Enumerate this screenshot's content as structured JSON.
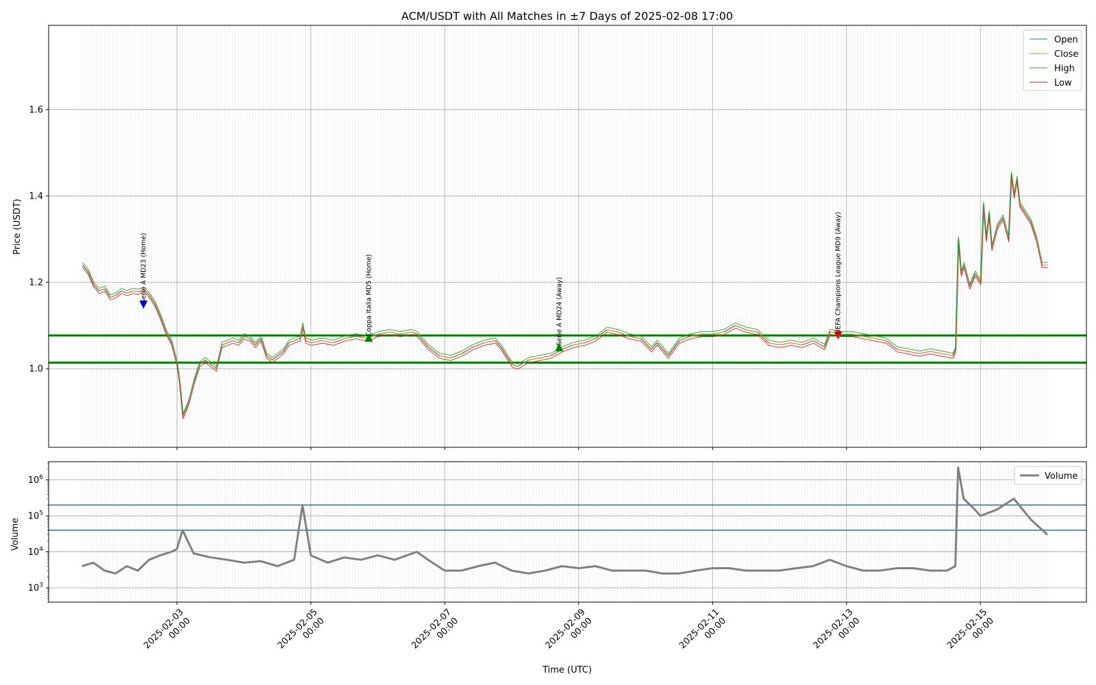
{
  "chart_data": [
    {
      "type": "line",
      "title": "ACM/USDT with All Matches in ±7 Days of 2025-02-08 17:00",
      "xlabel": "Time (UTC)",
      "ylabel": "Price (USDT)",
      "xlim": [
        "2025-02-01 02:00",
        "2025-02-16 14:00"
      ],
      "ylim": [
        0.818,
        1.795
      ],
      "y_ticks": [
        1.0,
        1.2,
        1.4,
        1.6
      ],
      "y_tick_labels": [
        "1.0",
        "1.2",
        "1.4",
        "1.6"
      ],
      "grid": true,
      "legend_position": "top-right",
      "series": [
        {
          "name": "Open",
          "color": "#1f77b4"
        },
        {
          "name": "Close",
          "color": "#ff7f0e"
        },
        {
          "name": "High",
          "color": "#2ca02c"
        },
        {
          "name": "Low",
          "color": "#d62728"
        }
      ],
      "close_points": [
        [
          "2025-02-01 14:00",
          1.24
        ],
        [
          "2025-02-01 16:00",
          1.225
        ],
        [
          "2025-02-01 18:00",
          1.195
        ],
        [
          "2025-02-01 20:00",
          1.18
        ],
        [
          "2025-02-01 22:00",
          1.185
        ],
        [
          "2025-02-02 00:00",
          1.165
        ],
        [
          "2025-02-02 02:00",
          1.17
        ],
        [
          "2025-02-02 04:00",
          1.18
        ],
        [
          "2025-02-02 06:00",
          1.175
        ],
        [
          "2025-02-02 08:00",
          1.18
        ],
        [
          "2025-02-02 10:00",
          1.178
        ],
        [
          "2025-02-02 12:00",
          1.183
        ],
        [
          "2025-02-02 14:00",
          1.17
        ],
        [
          "2025-02-02 16:00",
          1.15
        ],
        [
          "2025-02-02 18:00",
          1.12
        ],
        [
          "2025-02-02 20:00",
          1.085
        ],
        [
          "2025-02-02 22:00",
          1.06
        ],
        [
          "2025-02-03 00:00",
          1.01
        ],
        [
          "2025-02-03 01:00",
          0.96
        ],
        [
          "2025-02-03 02:00",
          0.89
        ],
        [
          "2025-02-03 04:00",
          0.92
        ],
        [
          "2025-02-03 06:00",
          0.97
        ],
        [
          "2025-02-03 08:00",
          1.01
        ],
        [
          "2025-02-03 10:00",
          1.02
        ],
        [
          "2025-02-03 12:00",
          1.01
        ],
        [
          "2025-02-03 14:00",
          1.0
        ],
        [
          "2025-02-03 16:00",
          1.055
        ],
        [
          "2025-02-03 18:00",
          1.06
        ],
        [
          "2025-02-03 20:00",
          1.065
        ],
        [
          "2025-02-03 22:00",
          1.06
        ],
        [
          "2025-02-04 00:00",
          1.075
        ],
        [
          "2025-02-04 02:00",
          1.07
        ],
        [
          "2025-02-04 04:00",
          1.055
        ],
        [
          "2025-02-04 06:00",
          1.07
        ],
        [
          "2025-02-04 08:00",
          1.03
        ],
        [
          "2025-02-04 10:00",
          1.02
        ],
        [
          "2025-02-04 12:00",
          1.03
        ],
        [
          "2025-02-04 14:00",
          1.04
        ],
        [
          "2025-02-04 16:00",
          1.06
        ],
        [
          "2025-02-04 18:00",
          1.065
        ],
        [
          "2025-02-04 20:00",
          1.07
        ],
        [
          "2025-02-04 21:00",
          1.1
        ],
        [
          "2025-02-04 22:00",
          1.065
        ],
        [
          "2025-02-05 00:00",
          1.06
        ],
        [
          "2025-02-05 04:00",
          1.065
        ],
        [
          "2025-02-05 08:00",
          1.06
        ],
        [
          "2025-02-05 12:00",
          1.07
        ],
        [
          "2025-02-05 16:00",
          1.075
        ],
        [
          "2025-02-05 20:00",
          1.07
        ],
        [
          "2025-02-06 00:00",
          1.08
        ],
        [
          "2025-02-06 04:00",
          1.085
        ],
        [
          "2025-02-06 08:00",
          1.08
        ],
        [
          "2025-02-06 12:00",
          1.085
        ],
        [
          "2025-02-06 14:00",
          1.08
        ],
        [
          "2025-02-06 18:00",
          1.05
        ],
        [
          "2025-02-06 22:00",
          1.03
        ],
        [
          "2025-02-07 02:00",
          1.025
        ],
        [
          "2025-02-07 06:00",
          1.035
        ],
        [
          "2025-02-07 10:00",
          1.05
        ],
        [
          "2025-02-07 14:00",
          1.06
        ],
        [
          "2025-02-07 18:00",
          1.065
        ],
        [
          "2025-02-07 20:00",
          1.05
        ],
        [
          "2025-02-08 00:00",
          1.01
        ],
        [
          "2025-02-08 02:00",
          1.005
        ],
        [
          "2025-02-08 06:00",
          1.02
        ],
        [
          "2025-02-08 10:00",
          1.025
        ],
        [
          "2025-02-08 14:00",
          1.03
        ],
        [
          "2025-02-08 18:00",
          1.045
        ],
        [
          "2025-02-08 22:00",
          1.055
        ],
        [
          "2025-02-09 02:00",
          1.06
        ],
        [
          "2025-02-09 06:00",
          1.07
        ],
        [
          "2025-02-09 10:00",
          1.09
        ],
        [
          "2025-02-09 14:00",
          1.085
        ],
        [
          "2025-02-09 18:00",
          1.075
        ],
        [
          "2025-02-09 22:00",
          1.07
        ],
        [
          "2025-02-10 02:00",
          1.045
        ],
        [
          "2025-02-10 04:00",
          1.06
        ],
        [
          "2025-02-10 08:00",
          1.03
        ],
        [
          "2025-02-10 12:00",
          1.065
        ],
        [
          "2025-02-10 16:00",
          1.075
        ],
        [
          "2025-02-10 20:00",
          1.08
        ],
        [
          "2025-02-11 00:00",
          1.08
        ],
        [
          "2025-02-11 04:00",
          1.085
        ],
        [
          "2025-02-11 08:00",
          1.1
        ],
        [
          "2025-02-11 12:00",
          1.09
        ],
        [
          "2025-02-11 16:00",
          1.085
        ],
        [
          "2025-02-11 20:00",
          1.06
        ],
        [
          "2025-02-12 00:00",
          1.055
        ],
        [
          "2025-02-12 04:00",
          1.06
        ],
        [
          "2025-02-12 08:00",
          1.055
        ],
        [
          "2025-02-12 12:00",
          1.065
        ],
        [
          "2025-02-12 16:00",
          1.05
        ],
        [
          "2025-02-12 18:00",
          1.085
        ],
        [
          "2025-02-12 22:00",
          1.08
        ],
        [
          "2025-02-13 02:00",
          1.08
        ],
        [
          "2025-02-13 06:00",
          1.075
        ],
        [
          "2025-02-13 10:00",
          1.07
        ],
        [
          "2025-02-13 14:00",
          1.065
        ],
        [
          "2025-02-13 18:00",
          1.045
        ],
        [
          "2025-02-13 22:00",
          1.04
        ],
        [
          "2025-02-14 02:00",
          1.035
        ],
        [
          "2025-02-14 06:00",
          1.04
        ],
        [
          "2025-02-14 10:00",
          1.035
        ],
        [
          "2025-02-14 14:00",
          1.03
        ],
        [
          "2025-02-14 15:00",
          1.045
        ],
        [
          "2025-02-14 16:00",
          1.3
        ],
        [
          "2025-02-14 17:00",
          1.22
        ],
        [
          "2025-02-14 18:00",
          1.24
        ],
        [
          "2025-02-14 20:00",
          1.19
        ],
        [
          "2025-02-14 22:00",
          1.22
        ],
        [
          "2025-02-15 00:00",
          1.2
        ],
        [
          "2025-02-15 01:00",
          1.38
        ],
        [
          "2025-02-15 02:00",
          1.3
        ],
        [
          "2025-02-15 03:00",
          1.36
        ],
        [
          "2025-02-15 04:00",
          1.28
        ],
        [
          "2025-02-15 06:00",
          1.33
        ],
        [
          "2025-02-15 08:00",
          1.35
        ],
        [
          "2025-02-15 10:00",
          1.3
        ],
        [
          "2025-02-15 11:00",
          1.45
        ],
        [
          "2025-02-15 12:00",
          1.4
        ],
        [
          "2025-02-15 13:00",
          1.44
        ],
        [
          "2025-02-15 14:00",
          1.38
        ],
        [
          "2025-02-15 16:00",
          1.36
        ],
        [
          "2025-02-15 18:00",
          1.34
        ],
        [
          "2025-02-15 20:00",
          1.3
        ],
        [
          "2025-02-15 22:00",
          1.24
        ],
        [
          "2025-02-16 00:00",
          1.24
        ]
      ],
      "horizontal_lines": [
        {
          "y": 1.077,
          "color": "#008000"
        },
        {
          "y": 1.014,
          "color": "#008000"
        }
      ],
      "events": [
        {
          "x": "2025-02-02 12:00",
          "y": 1.148,
          "label": "Serie A MD23 (Home)",
          "marker": "down",
          "color": "#0000ff"
        },
        {
          "x": "2025-02-05 20:45",
          "y": 1.072,
          "label": "Coppa Italia MD5 (Home)",
          "marker": "up",
          "color": "#008000"
        },
        {
          "x": "2025-02-08 17:00",
          "y": 1.05,
          "label": "Serie A MD24 (Away)",
          "marker": "up",
          "color": "#008000"
        },
        {
          "x": "2025-02-12 21:00",
          "y": 1.077,
          "label": "UEFA Champions League MD9 (Away)",
          "marker": "down",
          "color": "#ff0000"
        }
      ]
    },
    {
      "type": "line",
      "xlabel": "Time (UTC)",
      "ylabel": "Volume",
      "y_scale": "log",
      "ylim": [
        400,
        3200000
      ],
      "y_ticks": [
        1000,
        10000,
        100000,
        1000000
      ],
      "y_tick_labels": [
        [
          "10",
          "3"
        ],
        [
          "10",
          "4"
        ],
        [
          "10",
          "5"
        ],
        [
          "10",
          "6"
        ]
      ],
      "x_ticks": [
        "2025-02-03 00:00",
        "2025-02-05 00:00",
        "2025-02-07 00:00",
        "2025-02-09 00:00",
        "2025-02-11 00:00",
        "2025-02-13 00:00",
        "2025-02-15 00:00"
      ],
      "x_tick_labels": [
        [
          "2025-02-03",
          "00:00"
        ],
        [
          "2025-02-05",
          "00:00"
        ],
        [
          "2025-02-07",
          "00:00"
        ],
        [
          "2025-02-09",
          "00:00"
        ],
        [
          "2025-02-11",
          "00:00"
        ],
        [
          "2025-02-13",
          "00:00"
        ],
        [
          "2025-02-15",
          "00:00"
        ]
      ],
      "grid": true,
      "legend_position": "top-right",
      "series": [
        {
          "name": "Volume",
          "color": "#808080"
        }
      ],
      "volume_points": [
        [
          "2025-02-01 14:00",
          4000
        ],
        [
          "2025-02-01 18:00",
          5000
        ],
        [
          "2025-02-01 22:00",
          3000
        ],
        [
          "2025-02-02 02:00",
          2500
        ],
        [
          "2025-02-02 06:00",
          4000
        ],
        [
          "2025-02-02 10:00",
          3000
        ],
        [
          "2025-02-02 14:00",
          6000
        ],
        [
          "2025-02-02 18:00",
          8000
        ],
        [
          "2025-02-02 22:00",
          10000
        ],
        [
          "2025-02-03 00:00",
          12000
        ],
        [
          "2025-02-03 02:00",
          40000
        ],
        [
          "2025-02-03 06:00",
          9000
        ],
        [
          "2025-02-03 12:00",
          7000
        ],
        [
          "2025-02-03 18:00",
          6000
        ],
        [
          "2025-02-04 00:00",
          5000
        ],
        [
          "2025-02-04 06:00",
          5500
        ],
        [
          "2025-02-04 12:00",
          4000
        ],
        [
          "2025-02-04 18:00",
          6000
        ],
        [
          "2025-02-04 21:00",
          200000
        ],
        [
          "2025-02-05 00:00",
          8000
        ],
        [
          "2025-02-05 06:00",
          5000
        ],
        [
          "2025-02-05 12:00",
          7000
        ],
        [
          "2025-02-05 18:00",
          6000
        ],
        [
          "2025-02-06 00:00",
          8000
        ],
        [
          "2025-02-06 06:00",
          6000
        ],
        [
          "2025-02-06 14:00",
          10000
        ],
        [
          "2025-02-06 18:00",
          6000
        ],
        [
          "2025-02-07 00:00",
          3000
        ],
        [
          "2025-02-07 06:00",
          3000
        ],
        [
          "2025-02-07 12:00",
          4000
        ],
        [
          "2025-02-07 18:00",
          5000
        ],
        [
          "2025-02-08 00:00",
          3000
        ],
        [
          "2025-02-08 06:00",
          2500
        ],
        [
          "2025-02-08 12:00",
          3000
        ],
        [
          "2025-02-08 18:00",
          4000
        ],
        [
          "2025-02-09 00:00",
          3500
        ],
        [
          "2025-02-09 06:00",
          4000
        ],
        [
          "2025-02-09 12:00",
          3000
        ],
        [
          "2025-02-09 18:00",
          3000
        ],
        [
          "2025-02-10 00:00",
          3000
        ],
        [
          "2025-02-10 06:00",
          2500
        ],
        [
          "2025-02-10 12:00",
          2500
        ],
        [
          "2025-02-10 18:00",
          3000
        ],
        [
          "2025-02-11 00:00",
          3500
        ],
        [
          "2025-02-11 06:00",
          3500
        ],
        [
          "2025-02-11 12:00",
          3000
        ],
        [
          "2025-02-11 18:00",
          3000
        ],
        [
          "2025-02-12 00:00",
          3000
        ],
        [
          "2025-02-12 06:00",
          3500
        ],
        [
          "2025-02-12 12:00",
          4000
        ],
        [
          "2025-02-12 18:00",
          6000
        ],
        [
          "2025-02-13 00:00",
          4000
        ],
        [
          "2025-02-13 06:00",
          3000
        ],
        [
          "2025-02-13 12:00",
          3000
        ],
        [
          "2025-02-13 18:00",
          3500
        ],
        [
          "2025-02-14 00:00",
          3500
        ],
        [
          "2025-02-14 06:00",
          3000
        ],
        [
          "2025-02-14 12:00",
          3000
        ],
        [
          "2025-02-14 15:00",
          4000
        ],
        [
          "2025-02-14 16:00",
          2200000
        ],
        [
          "2025-02-14 18:00",
          300000
        ],
        [
          "2025-02-14 22:00",
          150000
        ],
        [
          "2025-02-15 00:00",
          100000
        ],
        [
          "2025-02-15 06:00",
          150000
        ],
        [
          "2025-02-15 12:00",
          300000
        ],
        [
          "2025-02-15 18:00",
          80000
        ],
        [
          "2025-02-16 00:00",
          30000
        ]
      ],
      "horizontal_lines": [
        {
          "y": 200000,
          "color": "#1f77b4"
        },
        {
          "y": 40000,
          "color": "#1f77b4"
        }
      ]
    }
  ]
}
